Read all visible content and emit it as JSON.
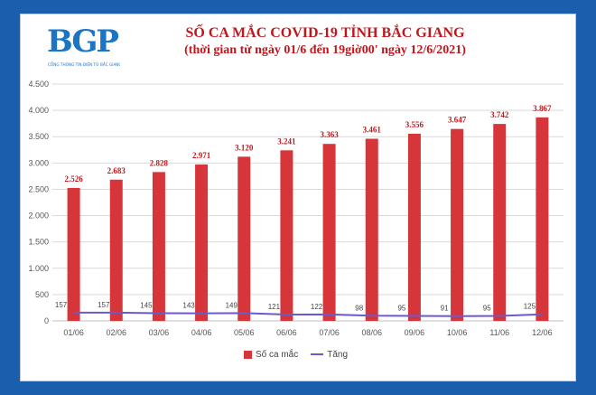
{
  "logo": {
    "text": "BGP",
    "subtext": "CỔNG THÔNG TIN ĐIỆN TỬ BẮC GIANG"
  },
  "chart_data": {
    "type": "bar",
    "title": "SỐ CA MẮC COVID-19 TỈNH BẮC GIANG",
    "subtitle": "(thời gian từ ngày 01/6 đến 19giờ00' ngày 12/6/2021)",
    "categories": [
      "01/06",
      "02/06",
      "03/06",
      "04/06",
      "05/06",
      "06/06",
      "07/06",
      "08/06",
      "09/06",
      "10/06",
      "11/06",
      "12/06"
    ],
    "series": [
      {
        "name": "Số ca mắc",
        "type": "bar",
        "color": "#d6363a",
        "values": [
          2526,
          2683,
          2828,
          2971,
          3120,
          3241,
          3363,
          3461,
          3556,
          3647,
          3742,
          3867
        ],
        "labels": [
          "2.526",
          "2.683",
          "2.828",
          "2.971",
          "3.120",
          "3.241",
          "3.363",
          "3.461",
          "3.556",
          "3.647",
          "3.742",
          "3.867"
        ]
      },
      {
        "name": "Tăng",
        "type": "line",
        "color": "#6a5acd",
        "values": [
          157,
          157,
          145,
          143,
          149,
          121,
          122,
          98,
          95,
          91,
          95,
          125
        ],
        "labels": [
          "157",
          "157",
          "145",
          "143",
          "149",
          "121",
          "122",
          "98",
          "95",
          "91",
          "95",
          "125"
        ]
      }
    ],
    "ylim": [
      0,
      4500
    ],
    "yticks": [
      0,
      500,
      1000,
      1500,
      2000,
      2500,
      3000,
      3500,
      4000,
      4500
    ],
    "ytick_labels": [
      "0",
      "500",
      "1.000",
      "1.500",
      "2.000",
      "2.500",
      "3.000",
      "3.500",
      "4.000",
      "4.500"
    ],
    "grid": true,
    "legend_position": "bottom"
  }
}
